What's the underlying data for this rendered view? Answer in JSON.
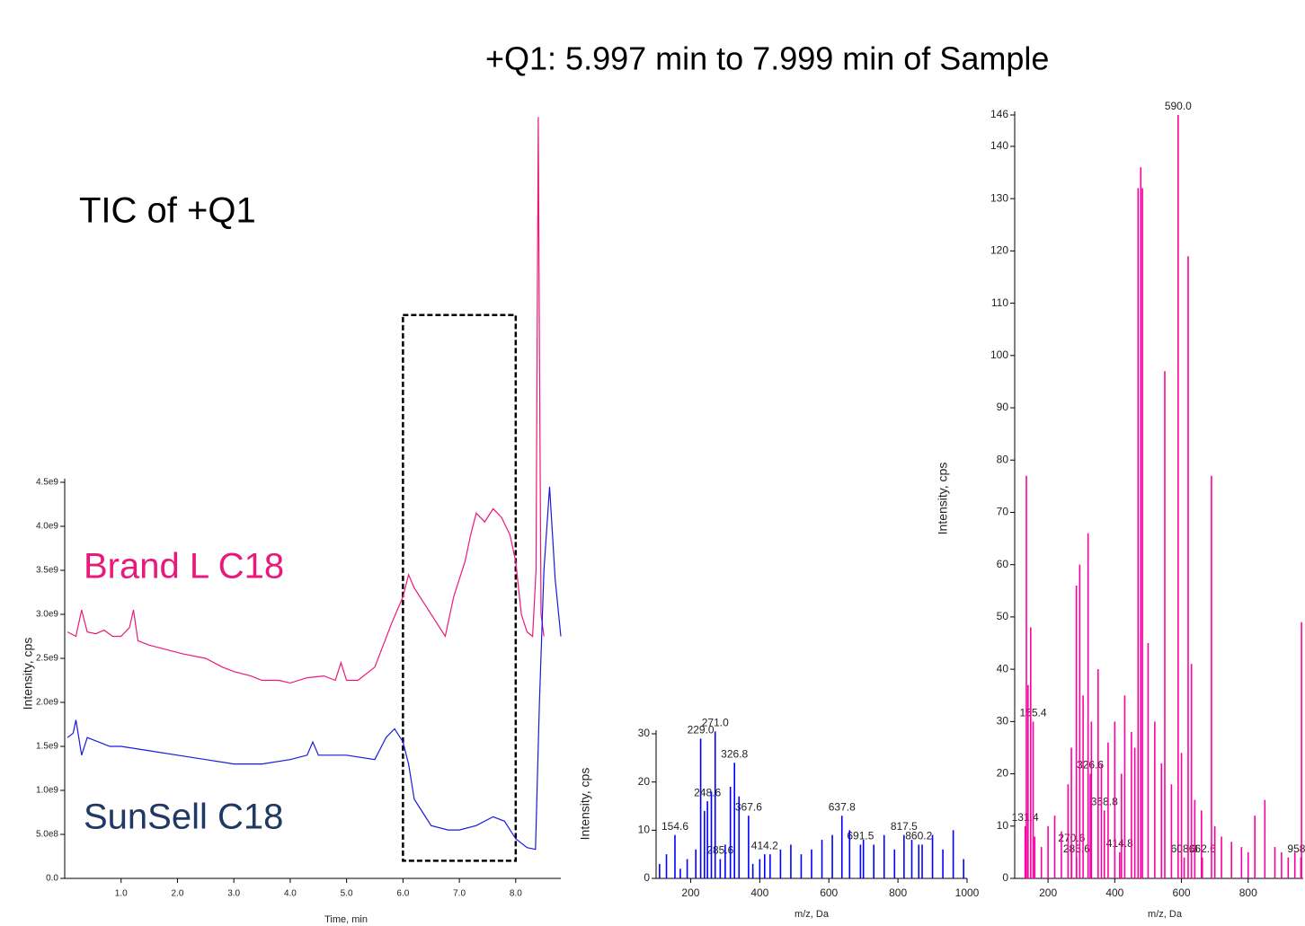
{
  "chart_data": [
    {
      "type": "line",
      "annotation": "TIC of +Q1",
      "xlabel": "Time, min",
      "ylabel": "Intensity, cps",
      "xlim": [
        0,
        8.8
      ],
      "ylim": [
        0,
        4500000000
      ],
      "xticks": [
        {
          "value": 1,
          "label": "1.0"
        },
        {
          "value": 2,
          "label": "2.0"
        },
        {
          "value": 3,
          "label": "3.0"
        },
        {
          "value": 4,
          "label": "4.0"
        },
        {
          "value": 5,
          "label": "5.0"
        },
        {
          "value": 6,
          "label": "6.0"
        },
        {
          "value": 7,
          "label": "7.0"
        },
        {
          "value": 8,
          "label": "8.0"
        }
      ],
      "yticks": [
        {
          "value": 0,
          "label": "0.0"
        },
        {
          "value": 500000000,
          "label": "5.0e8"
        },
        {
          "value": 1000000000,
          "label": "1.0e9"
        },
        {
          "value": 1500000000,
          "label": "1.5e9"
        },
        {
          "value": 2000000000,
          "label": "2.0e9"
        },
        {
          "value": 2500000000,
          "label": "2.5e9"
        },
        {
          "value": 3000000000,
          "label": "3.0e9"
        },
        {
          "value": 3500000000,
          "label": "3.5e9"
        },
        {
          "value": 4000000000,
          "label": "4.0e9"
        },
        {
          "value": 4500000000,
          "label": "4.5e9"
        }
      ],
      "highlight_xrange": [
        6.0,
        8.0
      ],
      "highlight_yrange": [
        200000000,
        6400000000
      ],
      "series": [
        {
          "name": "Brand L C18",
          "color": "#e8197a",
          "name_color": "#e8197a",
          "x": [
            0.05,
            0.2,
            0.3,
            0.4,
            0.55,
            0.7,
            0.85,
            1.0,
            1.15,
            1.22,
            1.3,
            1.5,
            1.8,
            2.1,
            2.5,
            2.8,
            3.0,
            3.3,
            3.5,
            3.8,
            4.0,
            4.3,
            4.6,
            4.8,
            4.9,
            5.0,
            5.2,
            5.5,
            5.8,
            6.0,
            6.1,
            6.2,
            6.4,
            6.6,
            6.75,
            6.9,
            7.1,
            7.2,
            7.3,
            7.45,
            7.6,
            7.75,
            7.9,
            8.0,
            8.1,
            8.2,
            8.3,
            8.36,
            8.4,
            8.42,
            8.45,
            8.5
          ],
          "values": [
            2800000000,
            2750000000,
            3050000000,
            2800000000,
            2780000000,
            2820000000,
            2750000000,
            2750000000,
            2850000000,
            3050000000,
            2700000000,
            2650000000,
            2600000000,
            2550000000,
            2500000000,
            2400000000,
            2350000000,
            2300000000,
            2250000000,
            2250000000,
            2220000000,
            2280000000,
            2300000000,
            2250000000,
            2450000000,
            2250000000,
            2250000000,
            2400000000,
            2900000000,
            3200000000,
            3450000000,
            3300000000,
            3100000000,
            2900000000,
            2750000000,
            3200000000,
            3600000000,
            3900000000,
            4150000000,
            4050000000,
            4200000000,
            4100000000,
            3900000000,
            3600000000,
            3000000000,
            2800000000,
            2750000000,
            3500000000,
            8650000000,
            6000000000,
            3000000000,
            2750000000
          ]
        },
        {
          "name": "SunSell C18",
          "color": "#1a1ad8",
          "name_color": "#1f3864",
          "x": [
            0.05,
            0.15,
            0.2,
            0.3,
            0.4,
            0.6,
            0.8,
            1.0,
            1.5,
            2.0,
            2.5,
            3.0,
            3.5,
            4.0,
            4.3,
            4.4,
            4.5,
            5.0,
            5.5,
            5.7,
            5.85,
            6.0,
            6.1,
            6.2,
            6.35,
            6.5,
            6.8,
            7.0,
            7.3,
            7.6,
            7.8,
            8.0,
            8.2,
            8.35,
            8.42,
            8.5,
            8.6,
            8.7,
            8.8
          ],
          "values": [
            1600000000,
            1650000000,
            1800000000,
            1400000000,
            1600000000,
            1550000000,
            1500000000,
            1500000000,
            1450000000,
            1400000000,
            1350000000,
            1300000000,
            1300000000,
            1350000000,
            1400000000,
            1550000000,
            1400000000,
            1400000000,
            1350000000,
            1600000000,
            1700000000,
            1550000000,
            1300000000,
            900000000,
            750000000,
            600000000,
            550000000,
            550000000,
            600000000,
            700000000,
            650000000,
            450000000,
            350000000,
            330000000,
            2000000000,
            3500000000,
            4450000000,
            3400000000,
            2750000000
          ]
        }
      ]
    },
    {
      "type": "bar",
      "xlabel": "m/z, Da",
      "ylabel": "Intensity, cps",
      "xlim": [
        100,
        1000
      ],
      "ylim": [
        0,
        30
      ],
      "xticks": [
        200,
        400,
        600,
        800,
        1000
      ],
      "yticks": [
        0,
        10,
        20,
        30
      ],
      "series": [
        {
          "color": "#0000ff",
          "x": [
            154.6,
            229.0,
            248.6,
            271.0,
            285.6,
            326.8,
            367.6,
            414.2,
            637.8,
            691.5,
            817.5,
            860.2
          ],
          "values": [
            9,
            29,
            16,
            30.5,
            4,
            24,
            13,
            5,
            13,
            7,
            9,
            7
          ],
          "x_labels": [
            "154.6",
            "229.0",
            "248.6",
            "271.0",
            "285.6",
            "326.8",
            "367.6",
            "414.2",
            "637.8",
            "691.5",
            "817.5",
            "860.2"
          ]
        },
        {
          "color": "#0000ff",
          "x": [
            110,
            130,
            170,
            190,
            215,
            240,
            260,
            300,
            315,
            340,
            380,
            400,
            430,
            460,
            490,
            520,
            550,
            580,
            610,
            660,
            700,
            730,
            760,
            790,
            840,
            870,
            900,
            930,
            960,
            990
          ],
          "values": [
            3,
            5,
            2,
            4,
            6,
            14,
            18,
            7,
            19,
            17,
            3,
            4,
            5,
            6,
            7,
            5,
            6,
            8,
            9,
            10,
            8,
            7,
            9,
            6,
            8,
            7,
            9,
            6,
            10,
            4
          ]
        }
      ]
    },
    {
      "type": "bar",
      "title": "+Q1: 5.997 min to 7.999 min of Sample",
      "xlabel": "m/z, Da",
      "ylabel": "Intensity, cps",
      "xlim": [
        100,
        965
      ],
      "ylim": [
        0,
        146
      ],
      "xticks": [
        200,
        400,
        600,
        800
      ],
      "yticks": [
        0,
        10,
        20,
        30,
        40,
        50,
        60,
        70,
        80,
        90,
        100,
        110,
        120,
        130,
        140,
        146
      ],
      "series": [
        {
          "color": "#ff00a0",
          "x": [
            131.4,
            155.4,
            285.6,
            270.6,
            326.6,
            368.8,
            414.8,
            590.0,
            608.3,
            662.6,
            958.1
          ],
          "values": [
            10,
            30,
            4,
            6,
            20,
            13,
            5,
            146,
            4,
            4,
            4
          ],
          "x_labels": [
            "131.4",
            "155.4",
            "285.6",
            "270.6",
            "326.6",
            "368.8",
            "414.8",
            "590.0",
            "608.3",
            "662.6",
            "958.1"
          ]
        },
        {
          "color": "#ff00a0",
          "x": [
            135,
            140,
            148,
            285,
            295,
            305,
            320,
            350,
            470,
            478,
            483,
            500,
            550,
            620,
            630,
            690,
            960,
            850,
            400,
            430
          ],
          "values": [
            77,
            37,
            48,
            56,
            60,
            35,
            66,
            40,
            132,
            136,
            132,
            45,
            97,
            119,
            41,
            77,
            49,
            15,
            30,
            35
          ]
        },
        {
          "color": "#ff00a0",
          "x": [
            160,
            180,
            200,
            220,
            240,
            260,
            270,
            330,
            360,
            380,
            420,
            450,
            460,
            520,
            540,
            570,
            600,
            640,
            660,
            700,
            720,
            750,
            780,
            800,
            820,
            880,
            900,
            920,
            940
          ],
          "values": [
            8,
            6,
            10,
            12,
            9,
            18,
            25,
            30,
            22,
            26,
            20,
            28,
            25,
            30,
            22,
            18,
            24,
            15,
            13,
            10,
            8,
            7,
            6,
            5,
            12,
            6,
            5,
            4,
            5
          ]
        }
      ]
    }
  ]
}
